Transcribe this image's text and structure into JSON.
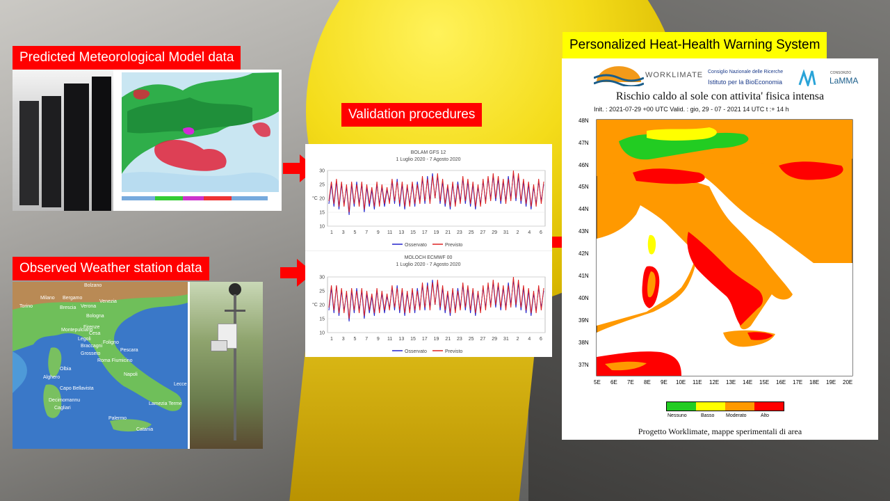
{
  "labels": {
    "predicted": "Predicted Meteorological Model data",
    "observed": "Observed Weather station data",
    "validation": "Validation procedures",
    "warning": "Personalized Heat-Health Warning System"
  },
  "warning_map": {
    "logo_worklimate": "WORKLIMATE",
    "logo_cnr_1": "Consiglio Nazionale delle Ricerche",
    "logo_cnr_2": "Istituto per la BioEconomia",
    "logo_lamma_1": "CONSORZIO",
    "logo_lamma_2": "LaMMA",
    "title": "Rischio caldo al sole con attivita' fisica intensa",
    "subtitle": "Init. : 2021-07-29 +00 UTC   Valid. : gio, 29 - 07 - 2021 14 UTC t :+ 14 h",
    "lat_labels": [
      "48N",
      "47N",
      "46N",
      "45N",
      "44N",
      "43N",
      "42N",
      "41N",
      "40N",
      "39N",
      "38N",
      "37N"
    ],
    "lon_labels": [
      "5E",
      "6E",
      "7E",
      "8E",
      "9E",
      "10E",
      "11E",
      "12E",
      "13E",
      "14E",
      "15E",
      "16E",
      "17E",
      "18E",
      "19E",
      "20E"
    ],
    "legend": [
      {
        "label": "Nessuno",
        "color": "#22cc22"
      },
      {
        "label": "Basso",
        "color": "#ffff00"
      },
      {
        "label": "Moderato",
        "color": "#ff9900"
      },
      {
        "label": "Alto",
        "color": "#ff0000"
      }
    ],
    "footer": "Progetto Worklimate, mappe  sperimentali di area"
  },
  "stations": [
    "Bolzano",
    "Milano",
    "Bergamo",
    "Torino",
    "Brescia",
    "Verona",
    "Venezia",
    "Bologna",
    "Montepulciano",
    "Firenze",
    "Legoli",
    "Braccagni",
    "Cesa",
    "Foligno",
    "Pescara",
    "Grosseto",
    "Roma Fiumicino",
    "Olbia",
    "Alghero",
    "Napoli",
    "Lecce",
    "Capo Bellavista",
    "Decimomannu",
    "Cagliari",
    "Lamezia Terme",
    "Palermo",
    "Catania"
  ],
  "chart_data": [
    {
      "type": "line",
      "title": "BOLAM GFS 12",
      "subtitle": "1 Luglio 2020 - 7 Agosto 2020",
      "ylabel": "°C",
      "ylim": [
        10,
        30
      ],
      "yticks": [
        10,
        15,
        20,
        25,
        30
      ],
      "xticks": [
        "1",
        "3",
        "5",
        "7",
        "9",
        "11",
        "13",
        "15",
        "17",
        "19",
        "21",
        "23",
        "25",
        "27",
        "29",
        "31",
        "2",
        "4",
        "6"
      ],
      "series": [
        {
          "name": "Osservato",
          "color": "#2222cc",
          "values": [
            18,
            25,
            17,
            26,
            16,
            25,
            18,
            24,
            14,
            25,
            17,
            26,
            18,
            25,
            15,
            24,
            17,
            23,
            16,
            25,
            18,
            24,
            17,
            23,
            19,
            26,
            18,
            27,
            17,
            25,
            16,
            24,
            18,
            25,
            17,
            26,
            19,
            27,
            18,
            28,
            19,
            29,
            20,
            28,
            18,
            26,
            17,
            24,
            16,
            25,
            18,
            26,
            19,
            27,
            18,
            26,
            17,
            25,
            16,
            24,
            18,
            26,
            19,
            27,
            20,
            28,
            19,
            27,
            18,
            26,
            19,
            28,
            20,
            29,
            19,
            28,
            18,
            26,
            17,
            25,
            16,
            24,
            18,
            26,
            19,
            25
          ]
        },
        {
          "name": "Previsto",
          "color": "#dd2222",
          "values": [
            19,
            26,
            18,
            27,
            17,
            26,
            17,
            25,
            15,
            26,
            18,
            25,
            17,
            26,
            16,
            25,
            18,
            24,
            17,
            26,
            17,
            25,
            18,
            24,
            18,
            27,
            19,
            26,
            18,
            26,
            17,
            25,
            17,
            26,
            18,
            25,
            18,
            28,
            19,
            27,
            18,
            28,
            20,
            29,
            19,
            27,
            18,
            25,
            17,
            26,
            17,
            25,
            18,
            28,
            19,
            27,
            18,
            26,
            17,
            25,
            17,
            27,
            18,
            28,
            19,
            29,
            20,
            28,
            19,
            27,
            18,
            27,
            19,
            30,
            20,
            29,
            19,
            27,
            18,
            26,
            17,
            25,
            17,
            27,
            18,
            26
          ]
        }
      ]
    },
    {
      "type": "line",
      "title": "MOLOCH ECMWF 00",
      "subtitle": "1 Luglio 2020 - 7 Agosto 2020",
      "ylabel": "°C",
      "ylim": [
        10,
        30
      ],
      "yticks": [
        10,
        15,
        20,
        25,
        30
      ],
      "xticks": [
        "1",
        "3",
        "5",
        "7",
        "9",
        "11",
        "13",
        "15",
        "17",
        "19",
        "21",
        "23",
        "25",
        "27",
        "29",
        "31",
        "2",
        "4",
        "6"
      ],
      "series": [
        {
          "name": "Osservato",
          "color": "#2222cc",
          "values": [
            18,
            26,
            17,
            27,
            16,
            25,
            18,
            24,
            14,
            25,
            17,
            26,
            18,
            25,
            15,
            24,
            17,
            23,
            16,
            25,
            18,
            24,
            17,
            23,
            19,
            26,
            18,
            27,
            17,
            25,
            16,
            24,
            18,
            25,
            17,
            26,
            19,
            27,
            18,
            28,
            19,
            29,
            20,
            28,
            18,
            26,
            17,
            24,
            16,
            25,
            18,
            26,
            19,
            27,
            18,
            26,
            17,
            25,
            16,
            24,
            18,
            26,
            19,
            27,
            20,
            28,
            19,
            27,
            18,
            26,
            19,
            28,
            20,
            29,
            19,
            28,
            18,
            26,
            17,
            25,
            16,
            24,
            18,
            26,
            19,
            25
          ]
        },
        {
          "name": "Previsto",
          "color": "#dd2222",
          "values": [
            19,
            27,
            18,
            27,
            17,
            26,
            17,
            25,
            15,
            26,
            18,
            25,
            17,
            26,
            16,
            25,
            18,
            24,
            17,
            26,
            17,
            25,
            18,
            24,
            18,
            27,
            19,
            26,
            18,
            26,
            17,
            25,
            17,
            26,
            18,
            25,
            18,
            28,
            19,
            27,
            18,
            28,
            20,
            29,
            19,
            27,
            18,
            25,
            17,
            26,
            17,
            25,
            18,
            28,
            19,
            27,
            18,
            26,
            17,
            25,
            17,
            27,
            18,
            28,
            19,
            29,
            20,
            28,
            19,
            27,
            18,
            27,
            19,
            30,
            20,
            29,
            19,
            27,
            18,
            26,
            17,
            25,
            17,
            27,
            18,
            26
          ]
        }
      ]
    }
  ]
}
